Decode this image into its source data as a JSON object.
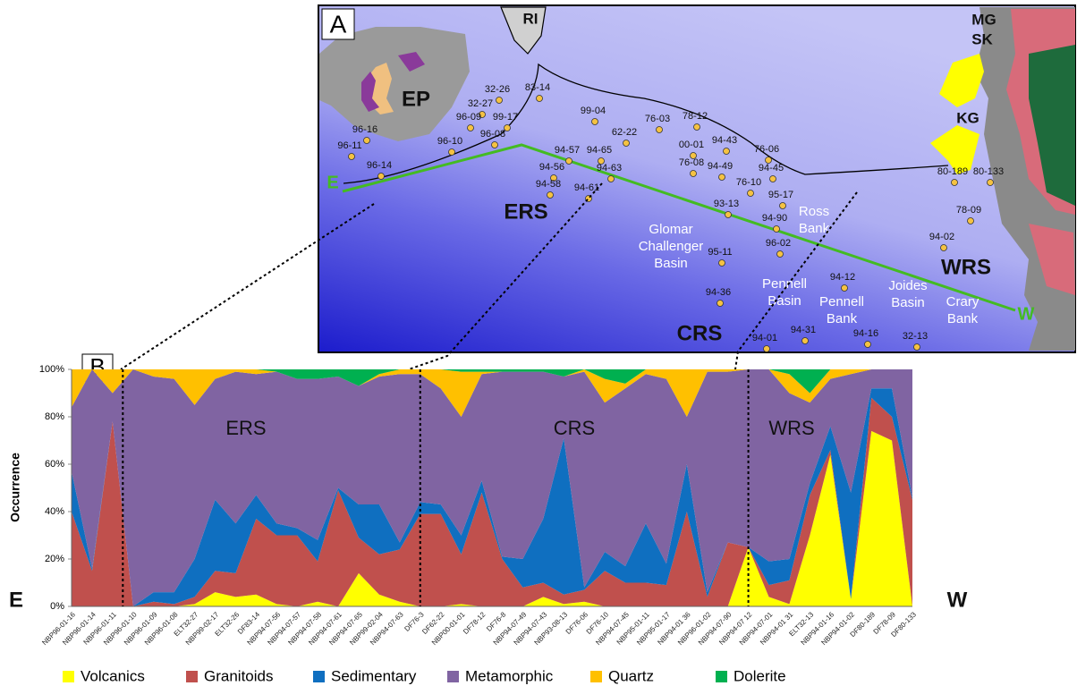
{
  "map": {
    "panel_label": "A",
    "labels": [
      "RI",
      "MG",
      "SK",
      "KG",
      "EP",
      "ERS",
      "CRS",
      "WRS",
      "E",
      "W"
    ],
    "basins": [
      "Glomar",
      "Challenger",
      "Basin",
      "Ross",
      "Bank",
      "Pennell",
      "Basin",
      "Pennell",
      "Bank",
      "Joides",
      "Basin",
      "Crary",
      "Bank"
    ],
    "samples": [
      "83-14",
      "32-26",
      "32-27",
      "96-09",
      "99-17",
      "96-08",
      "96-16",
      "96-11",
      "96-10",
      "96-14",
      "99-04",
      "76-03",
      "62-22",
      "78-12",
      "94-57",
      "94-65",
      "94-56",
      "94-63",
      "94-58",
      "94-61",
      "00-01",
      "94-43",
      "76-06",
      "76-08",
      "94-49",
      "94-45",
      "76-10",
      "95-17",
      "93-13",
      "94-90",
      "96-02",
      "95-11",
      "94-36",
      "94-12",
      "94-01",
      "94-31",
      "94-16",
      "32-13",
      "80-189",
      "80-133",
      "78-09",
      "94-02"
    ]
  },
  "chart_data": {
    "type": "area",
    "stacked": true,
    "panel_label": "B",
    "ylabel": "Occurrence",
    "annotations": [
      "ERS",
      "CRS",
      "WRS",
      "E",
      "W"
    ],
    "categories": [
      "NBP96-01-16",
      "NBP96-01-14",
      "NBP96-01-11",
      "NBP96-01-10",
      "NBP96-01-09",
      "NBP96-01-08",
      "ELT32-27",
      "NBP99-02-17",
      "ELT32-26",
      "DF83-14",
      "NBP94-07-56",
      "NBP94-07-57",
      "NBP94-07-58",
      "NBP94-07-61",
      "NBP94-07-65",
      "NBP99-02-04",
      "NBP94-07-63",
      "DF76-3",
      "DF62-22",
      "NBP00-01-01",
      "DF78-12",
      "DF76-8",
      "NBP94-07-49",
      "NBP94-07-43",
      "NBP93-08-13",
      "DF76-06",
      "DF76-10",
      "NBP94-07-45",
      "NBP95-01-11",
      "NBP95-01-17",
      "NBP94-01 36",
      "NBP96-01-02",
      "NBP94-07-90",
      "NBP94-07 12",
      "NBP94-07-01",
      "NBP94-01 31",
      "ELT32-13",
      "NBP94-01-16",
      "NBP94-01-02",
      "DF80-189",
      "DF78-09",
      "DF80-133"
    ],
    "series": [
      {
        "name": "Volcanics",
        "color": "#ffff00",
        "values": [
          0,
          0,
          0,
          0,
          0,
          0,
          1,
          6,
          4,
          5,
          1,
          0,
          2,
          0,
          14,
          5,
          2,
          0,
          0,
          1,
          0,
          0,
          0,
          4,
          1,
          2,
          0,
          0,
          0,
          0,
          0,
          0,
          0,
          25,
          4,
          1,
          30,
          64,
          3,
          74,
          70,
          0
        ]
      },
      {
        "name": "Granitoids",
        "color": "#c0504d",
        "values": [
          40,
          15,
          78,
          0,
          2,
          1,
          3,
          9,
          10,
          32,
          29,
          30,
          17,
          49,
          15,
          17,
          22,
          39,
          39,
          21,
          48,
          20,
          8,
          6,
          4,
          5,
          15,
          10,
          10,
          9,
          40,
          4,
          27,
          0,
          5,
          10,
          17,
          2,
          0,
          14,
          10,
          45
        ]
      },
      {
        "name": "Sedimentary",
        "color": "#0f6fc0",
        "values": [
          17,
          1,
          0,
          0,
          4,
          5,
          16,
          30,
          21,
          10,
          5,
          3,
          9,
          1,
          14,
          21,
          3,
          5,
          4,
          8,
          5,
          1,
          12,
          27,
          66,
          1,
          8,
          7,
          25,
          9,
          20,
          2,
          0,
          0,
          10,
          9,
          5,
          10,
          45,
          4,
          12,
          1
        ]
      },
      {
        "name": "Metamorphic",
        "color": "#8064a2",
        "values": [
          27,
          84,
          12,
          100,
          91,
          90,
          65,
          51,
          64,
          51,
          64,
          63,
          68,
          47,
          50,
          54,
          71,
          54,
          49,
          50,
          45,
          78,
          79,
          62,
          26,
          91,
          63,
          75,
          63,
          78,
          20,
          93,
          72,
          75,
          81,
          70,
          34,
          20,
          50,
          8,
          8,
          54
        ]
      },
      {
        "name": "Quartz",
        "color": "#ffc000",
        "values": [
          16,
          0,
          10,
          0,
          3,
          4,
          15,
          4,
          1,
          2,
          0,
          0,
          0,
          0,
          0,
          1,
          2,
          2,
          8,
          19,
          1,
          0,
          0,
          0,
          0,
          1,
          10,
          2,
          2,
          4,
          20,
          1,
          1,
          0,
          0,
          8,
          4,
          4,
          2,
          0,
          0,
          0
        ]
      },
      {
        "name": "Dolerite",
        "color": "#00b050",
        "values": [
          0,
          0,
          0,
          0,
          0,
          0,
          0,
          0,
          0,
          0,
          1,
          4,
          4,
          3,
          7,
          2,
          0,
          0,
          0,
          1,
          1,
          1,
          1,
          1,
          3,
          0,
          4,
          6,
          0,
          0,
          0,
          0,
          0,
          0,
          0,
          2,
          10,
          0,
          0,
          0,
          0,
          0
        ]
      }
    ],
    "ylim": [
      0,
      100
    ],
    "yticks": [
      {
        "value": 0,
        "label": "0%"
      },
      {
        "value": 20,
        "label": "20%"
      },
      {
        "value": 40,
        "label": "40%"
      },
      {
        "value": 60,
        "label": "60%"
      },
      {
        "value": 80,
        "label": "80%"
      },
      {
        "value": 100,
        "label": "100%"
      }
    ]
  }
}
